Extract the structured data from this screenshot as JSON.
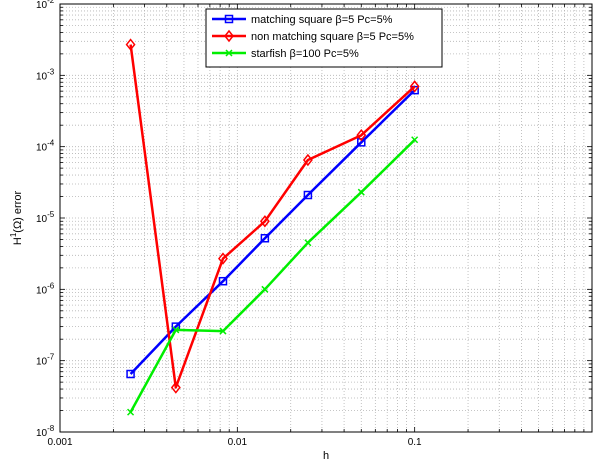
{
  "chart_data": {
    "type": "line",
    "xscale": "log",
    "yscale": "log",
    "xlim": [
      0.001,
      1
    ],
    "ylim": [
      1e-08,
      0.01
    ],
    "grid": "minor-dotted",
    "xlabel": "h",
    "ylabel_main": "H",
    "ylabel_sup": "1",
    "ylabel_rest": "(Ω) error",
    "x_ticks": [
      {
        "value": 0.001,
        "label": "0.001"
      },
      {
        "value": 0.01,
        "label": "0.01"
      },
      {
        "value": 0.1,
        "label": "0.1"
      }
    ],
    "y_ticks": [
      {
        "value": 1e-08,
        "base": "10",
        "exp": "-8"
      },
      {
        "value": 1e-07,
        "base": "10",
        "exp": "-7"
      },
      {
        "value": 1e-06,
        "base": "10",
        "exp": "-6"
      },
      {
        "value": 1e-05,
        "base": "10",
        "exp": "-5"
      },
      {
        "value": 0.0001,
        "base": "10",
        "exp": "-4"
      },
      {
        "value": 0.001,
        "base": "10",
        "exp": "-3"
      },
      {
        "value": 0.01,
        "base": "10",
        "exp": "-2"
      }
    ],
    "legend_position": "top-right",
    "series": [
      {
        "name": "matching square β=5 Pc=5%",
        "color": "#0000ff",
        "marker": "square",
        "x": [
          0.0025,
          0.0045,
          0.0083,
          0.0143,
          0.025,
          0.05,
          0.1
        ],
        "y": [
          6.5e-08,
          3e-07,
          1.3e-06,
          5.2e-06,
          2.1e-05,
          0.000115,
          0.00062
        ]
      },
      {
        "name": "non matching square β=5 Pc=5%",
        "color": "#ff0000",
        "marker": "diamond",
        "x": [
          0.0025,
          0.0045,
          0.0083,
          0.0143,
          0.025,
          0.05,
          0.1
        ],
        "y": [
          0.0027,
          4.2e-08,
          2.7e-06,
          9e-06,
          6.5e-05,
          0.000145,
          0.0007
        ]
      },
      {
        "name": "starfish β=100  Pc=5%",
        "color": "#00ee00",
        "marker": "x",
        "x": [
          0.0025,
          0.0045,
          0.0083,
          0.0143,
          0.025,
          0.05,
          0.1
        ],
        "y": [
          1.9e-08,
          2.7e-07,
          2.6e-07,
          1e-06,
          4.5e-06,
          2.3e-05,
          0.000125
        ]
      }
    ]
  }
}
